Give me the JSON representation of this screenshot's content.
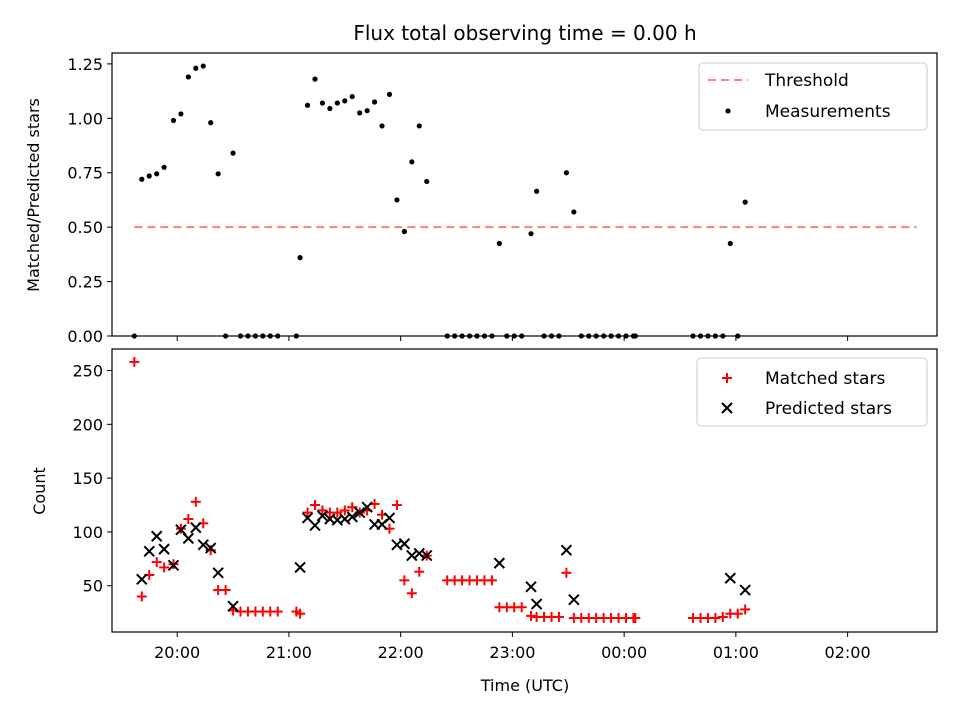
{
  "title": "Flux total observing time = 0.00 h",
  "chart_data": [
    {
      "type": "scatter",
      "ylabel": "Matched/Predicted stars",
      "xlabel": "",
      "xlim": [
        "19:25",
        "02:48"
      ],
      "ylim": [
        0,
        1.3
      ],
      "yticks": [
        "0.00",
        "0.25",
        "0.50",
        "0.75",
        "1.00",
        "1.25"
      ],
      "legend_position": "upper right",
      "threshold": {
        "name": "Threshold",
        "value": 0.5,
        "x_start": "19:37",
        "x_end": "02:37",
        "color": "#ff7f7f"
      },
      "series": [
        {
          "name": "Measurements",
          "color": "#000000",
          "points": [
            [
              "19:37",
              0.0
            ],
            [
              "19:41",
              0.72
            ],
            [
              "19:45",
              0.735
            ],
            [
              "19:49",
              0.745
            ],
            [
              "19:53",
              0.775
            ],
            [
              "19:58",
              0.99
            ],
            [
              "20:02",
              1.02
            ],
            [
              "20:06",
              1.19
            ],
            [
              "20:10",
              1.23
            ],
            [
              "20:14",
              1.24
            ],
            [
              "20:18",
              0.98
            ],
            [
              "20:22",
              0.745
            ],
            [
              "20:26",
              0.0
            ],
            [
              "20:30",
              0.84
            ],
            [
              "20:34",
              0.0
            ],
            [
              "20:38",
              0.0
            ],
            [
              "20:42",
              0.0
            ],
            [
              "20:46",
              0.0
            ],
            [
              "20:50",
              0.0
            ],
            [
              "20:54",
              0.0
            ],
            [
              "21:04",
              0.0
            ],
            [
              "21:06",
              0.36
            ],
            [
              "21:10",
              1.06
            ],
            [
              "21:14",
              1.18
            ],
            [
              "21:18",
              1.07
            ],
            [
              "21:22",
              1.045
            ],
            [
              "21:26",
              1.07
            ],
            [
              "21:30",
              1.08
            ],
            [
              "21:34",
              1.1
            ],
            [
              "21:38",
              1.025
            ],
            [
              "21:42",
              1.035
            ],
            [
              "21:46",
              1.075
            ],
            [
              "21:50",
              0.965
            ],
            [
              "21:54",
              1.11
            ],
            [
              "21:58",
              0.625
            ],
            [
              "22:02",
              0.48
            ],
            [
              "22:06",
              0.8
            ],
            [
              "22:10",
              0.965
            ],
            [
              "22:14",
              0.71
            ],
            [
              "22:25",
              0.0
            ],
            [
              "22:29",
              0.0
            ],
            [
              "22:33",
              0.0
            ],
            [
              "22:37",
              0.0
            ],
            [
              "22:41",
              0.0
            ],
            [
              "22:45",
              0.0
            ],
            [
              "22:49",
              0.0
            ],
            [
              "22:53",
              0.425
            ],
            [
              "22:57",
              0.0
            ],
            [
              "23:01",
              0.0
            ],
            [
              "23:05",
              0.0
            ],
            [
              "23:10",
              0.47
            ],
            [
              "23:13",
              0.665
            ],
            [
              "23:17",
              0.0
            ],
            [
              "23:21",
              0.0
            ],
            [
              "23:25",
              0.0
            ],
            [
              "23:29",
              0.75
            ],
            [
              "23:33",
              0.57
            ],
            [
              "23:37",
              0.0
            ],
            [
              "23:41",
              0.0
            ],
            [
              "23:45",
              0.0
            ],
            [
              "23:49",
              0.0
            ],
            [
              "23:53",
              0.0
            ],
            [
              "23:57",
              0.0
            ],
            [
              "00:01",
              0.0
            ],
            [
              "00:05",
              0.0
            ],
            [
              "00:06",
              0.0
            ],
            [
              "00:37",
              0.0
            ],
            [
              "00:41",
              0.0
            ],
            [
              "00:45",
              0.0
            ],
            [
              "00:49",
              0.0
            ],
            [
              "00:53",
              0.0
            ],
            [
              "00:57",
              0.425
            ],
            [
              "01:01",
              0.0
            ],
            [
              "01:05",
              0.615
            ]
          ]
        }
      ]
    },
    {
      "type": "scatter",
      "ylabel": "Count",
      "xlabel": "Time (UTC)",
      "xlim": [
        "19:25",
        "02:48"
      ],
      "ylim": [
        7,
        270
      ],
      "yticks": [
        "50",
        "100",
        "150",
        "200",
        "250"
      ],
      "xticks": [
        "20:00",
        "21:00",
        "22:00",
        "23:00",
        "00:00",
        "01:00",
        "02:00"
      ],
      "legend_position": "upper right",
      "series": [
        {
          "name": "Matched stars",
          "marker": "plus",
          "color": "#ff0000",
          "points": [
            [
              "19:37",
              258
            ],
            [
              "19:41",
              40
            ],
            [
              "19:45",
              60
            ],
            [
              "19:49",
              72
            ],
            [
              "19:53",
              67
            ],
            [
              "19:58",
              70
            ],
            [
              "20:02",
              103
            ],
            [
              "20:06",
              112
            ],
            [
              "20:10",
              128
            ],
            [
              "20:14",
              108
            ],
            [
              "20:18",
              83
            ],
            [
              "20:22",
              46
            ],
            [
              "20:26",
              46
            ],
            [
              "20:30",
              27
            ],
            [
              "20:34",
              26
            ],
            [
              "20:38",
              26
            ],
            [
              "20:42",
              26
            ],
            [
              "20:46",
              26
            ],
            [
              "20:50",
              26
            ],
            [
              "20:54",
              26
            ],
            [
              "21:04",
              26
            ],
            [
              "21:06",
              24
            ],
            [
              "21:10",
              118
            ],
            [
              "21:14",
              125
            ],
            [
              "21:18",
              120
            ],
            [
              "21:22",
              118
            ],
            [
              "21:26",
              118
            ],
            [
              "21:30",
              120
            ],
            [
              "21:34",
              123
            ],
            [
              "21:38",
              118
            ],
            [
              "21:42",
              120
            ],
            [
              "21:46",
              126
            ],
            [
              "21:50",
              116
            ],
            [
              "21:54",
              103
            ],
            [
              "21:58",
              125
            ],
            [
              "22:02",
              55
            ],
            [
              "22:06",
              43
            ],
            [
              "22:10",
              63
            ],
            [
              "22:14",
              78
            ],
            [
              "22:25",
              55
            ],
            [
              "22:29",
              55
            ],
            [
              "22:33",
              55
            ],
            [
              "22:37",
              55
            ],
            [
              "22:41",
              55
            ],
            [
              "22:45",
              55
            ],
            [
              "22:49",
              55
            ],
            [
              "22:53",
              30
            ],
            [
              "22:57",
              30
            ],
            [
              "23:01",
              30
            ],
            [
              "23:05",
              30
            ],
            [
              "23:10",
              22
            ],
            [
              "23:13",
              21
            ],
            [
              "23:17",
              21
            ],
            [
              "23:21",
              21
            ],
            [
              "23:25",
              21
            ],
            [
              "23:29",
              62
            ],
            [
              "23:33",
              20
            ],
            [
              "23:37",
              20
            ],
            [
              "23:41",
              20
            ],
            [
              "23:45",
              20
            ],
            [
              "23:49",
              20
            ],
            [
              "23:53",
              20
            ],
            [
              "23:57",
              20
            ],
            [
              "00:01",
              20
            ],
            [
              "00:05",
              20
            ],
            [
              "00:06",
              20
            ],
            [
              "00:37",
              20
            ],
            [
              "00:41",
              20
            ],
            [
              "00:45",
              20
            ],
            [
              "00:49",
              20
            ],
            [
              "00:53",
              21
            ],
            [
              "00:57",
              24
            ],
            [
              "01:01",
              24
            ],
            [
              "01:05",
              28
            ]
          ]
        },
        {
          "name": "Predicted stars",
          "marker": "x",
          "color": "#000000",
          "points": [
            [
              "19:41",
              56
            ],
            [
              "19:45",
              82
            ],
            [
              "19:49",
              96
            ],
            [
              "19:53",
              84
            ],
            [
              "19:58",
              69
            ],
            [
              "20:02",
              102
            ],
            [
              "20:06",
              94
            ],
            [
              "20:10",
              104
            ],
            [
              "20:14",
              88
            ],
            [
              "20:18",
              85
            ],
            [
              "20:22",
              62
            ],
            [
              "20:30",
              31
            ],
            [
              "21:06",
              67
            ],
            [
              "21:10",
              113
            ],
            [
              "21:14",
              106
            ],
            [
              "21:18",
              115
            ],
            [
              "21:22",
              112
            ],
            [
              "21:26",
              111
            ],
            [
              "21:30",
              112
            ],
            [
              "21:34",
              114
            ],
            [
              "21:38",
              118
            ],
            [
              "21:42",
              123
            ],
            [
              "21:46",
              107
            ],
            [
              "21:50",
              107
            ],
            [
              "21:54",
              113
            ],
            [
              "21:58",
              88
            ],
            [
              "22:02",
              89
            ],
            [
              "22:06",
              78
            ],
            [
              "22:10",
              80
            ],
            [
              "22:14",
              78
            ],
            [
              "22:53",
              71
            ],
            [
              "23:10",
              49
            ],
            [
              "23:13",
              33
            ],
            [
              "23:29",
              83
            ],
            [
              "23:33",
              37
            ],
            [
              "00:57",
              57
            ],
            [
              "01:05",
              46
            ]
          ]
        }
      ]
    }
  ]
}
